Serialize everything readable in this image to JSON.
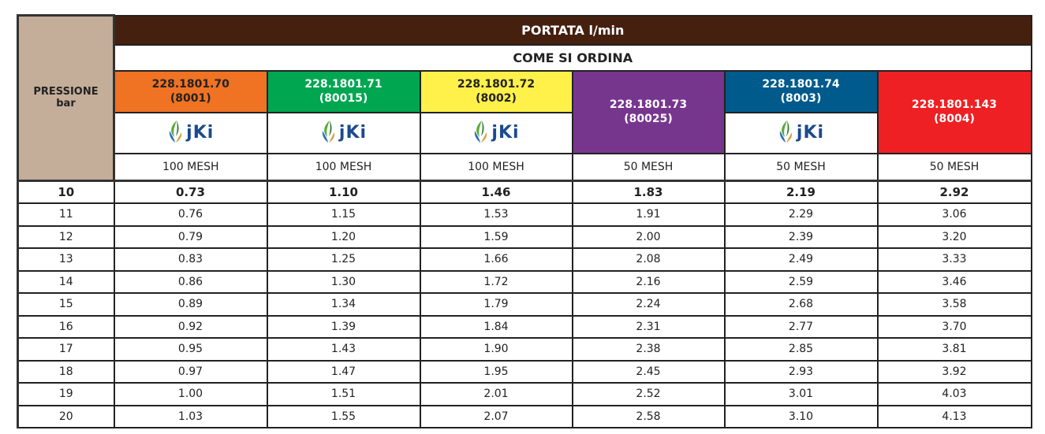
{
  "header": {
    "pressure_label": "PRESSIONE",
    "pressure_unit": "bar",
    "flow_title": "PORTATA l/min",
    "order_title": "COME SI ORDINA"
  },
  "products": [
    {
      "code": "228.1801.70",
      "ref": "(8001)",
      "color": "#F07223",
      "text_color": "#222222",
      "logo": true,
      "mesh": "100 MESH"
    },
    {
      "code": "228.1801.71",
      "ref": "(80015)",
      "color": "#00A650",
      "text_color": "#FFFFFF",
      "logo": true,
      "mesh": "100 MESH"
    },
    {
      "code": "228.1801.72",
      "ref": "(8002)",
      "color": "#FFF04A",
      "text_color": "#222222",
      "logo": true,
      "mesh": "100 MESH"
    },
    {
      "code": "228.1801.73",
      "ref": "(80025)",
      "color": "#77368E",
      "text_color": "#FFFFFF",
      "logo": false,
      "mesh": "50 MESH"
    },
    {
      "code": "228.1801.74",
      "ref": "(8003)",
      "color": "#005A8C",
      "text_color": "#FFFFFF",
      "logo": true,
      "mesh": "50 MESH"
    },
    {
      "code": "228.1801.143",
      "ref": "(8004)",
      "color": "#EE2024",
      "text_color": "#FFFFFF",
      "logo": false,
      "mesh": "50 MESH"
    }
  ],
  "logo_text": "jKi",
  "rows": [
    {
      "bar": "10",
      "values": [
        "0.73",
        "1.10",
        "1.46",
        "1.83",
        "2.19",
        "2.92"
      ]
    },
    {
      "bar": "11",
      "values": [
        "0.76",
        "1.15",
        "1.53",
        "1.91",
        "2.29",
        "3.06"
      ]
    },
    {
      "bar": "12",
      "values": [
        "0.79",
        "1.20",
        "1.59",
        "2.00",
        "2.39",
        "3.20"
      ]
    },
    {
      "bar": "13",
      "values": [
        "0.83",
        "1.25",
        "1.66",
        "2.08",
        "2.49",
        "3.33"
      ]
    },
    {
      "bar": "14",
      "values": [
        "0.86",
        "1.30",
        "1.72",
        "2.16",
        "2.59",
        "3.46"
      ]
    },
    {
      "bar": "15",
      "values": [
        "0.89",
        "1.34",
        "1.79",
        "2.24",
        "2.68",
        "3.58"
      ]
    },
    {
      "bar": "16",
      "values": [
        "0.92",
        "1.39",
        "1.84",
        "2.31",
        "2.77",
        "3.70"
      ]
    },
    {
      "bar": "17",
      "values": [
        "0.95",
        "1.43",
        "1.90",
        "2.38",
        "2.85",
        "3.81"
      ]
    },
    {
      "bar": "18",
      "values": [
        "0.97",
        "1.47",
        "1.95",
        "2.45",
        "2.93",
        "3.92"
      ]
    },
    {
      "bar": "19",
      "values": [
        "1.00",
        "1.51",
        "2.01",
        "2.52",
        "3.01",
        "4.03"
      ]
    },
    {
      "bar": "20",
      "values": [
        "1.03",
        "1.55",
        "2.07",
        "2.58",
        "3.10",
        "4.13"
      ]
    }
  ]
}
